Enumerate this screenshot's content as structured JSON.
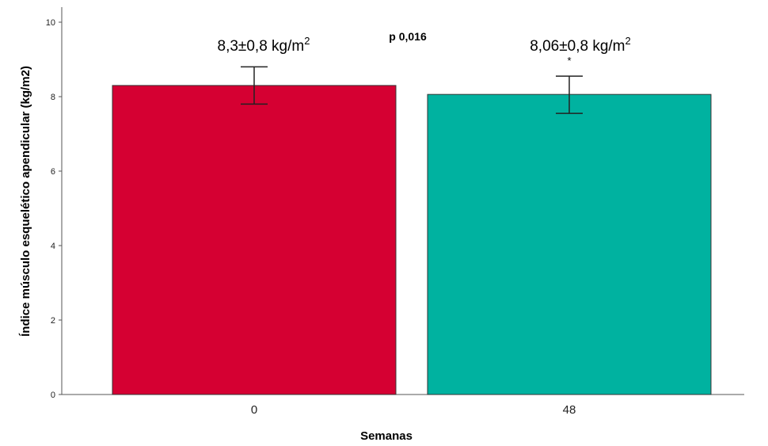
{
  "chart_data": {
    "type": "bar",
    "categories": [
      "0",
      "48"
    ],
    "values": [
      8.3,
      8.06
    ],
    "error_bars": [
      {
        "low": 7.8,
        "high": 8.8
      },
      {
        "low": 7.55,
        "high": 8.55
      }
    ],
    "colors": [
      "#d50032",
      "#00b2a0"
    ],
    "xlabel": "Semanas",
    "ylabel": "Índice músculo esquelético apendicular (kg/m2)",
    "ylim": [
      0,
      10
    ],
    "yticks": [
      "0",
      "2",
      "4",
      "6",
      "8",
      "10"
    ],
    "annotations": {
      "bar_labels": [
        {
          "base": "8,3±0,8 kg/m",
          "sup": "2"
        },
        {
          "base": "8,06±0,8 kg/m",
          "sup": "2"
        }
      ],
      "p_value": "p 0,016",
      "significance_marker": "*"
    },
    "grid": false,
    "legend": "none"
  }
}
